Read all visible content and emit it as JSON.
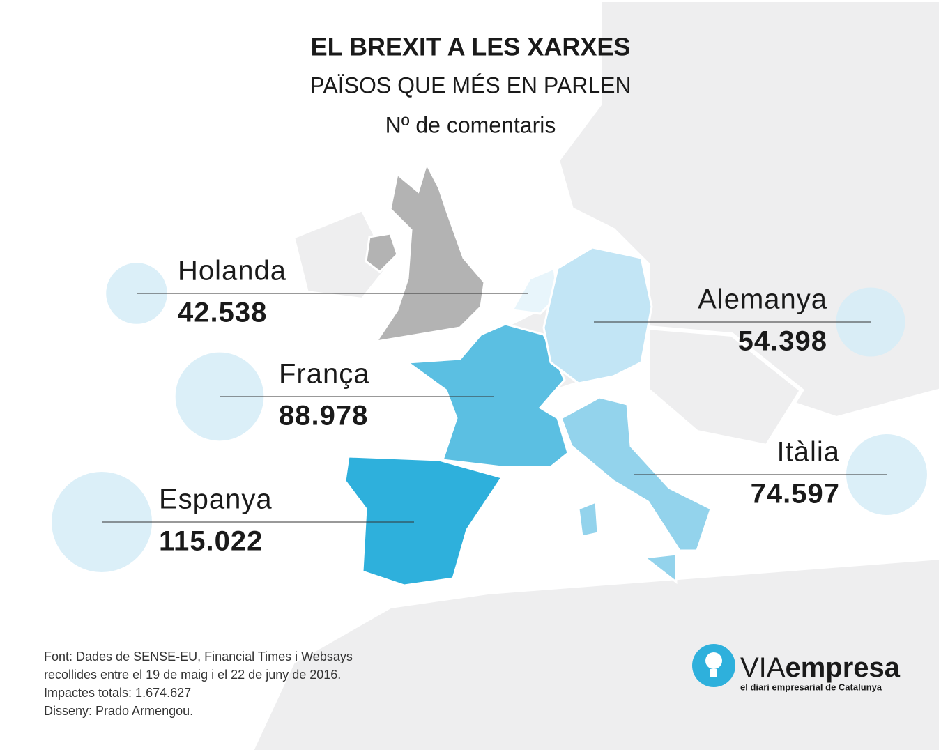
{
  "chart_data": {
    "type": "bubble",
    "title": "EL BREXIT A LES XARXES",
    "subtitle": "PAÏSOS QUE MÉS EN PARLEN",
    "value_label": "Nº de comentaris",
    "categories": [
      "Holanda",
      "França",
      "Espanya",
      "Alemanya",
      "Itàlia"
    ],
    "values": [
      42538,
      88978,
      115022,
      54398,
      74597
    ],
    "value_labels": [
      "42.538",
      "88.978",
      "115.022",
      "54.398",
      "74.597"
    ],
    "color": "#d5ecf7"
  },
  "notes": [
    "Font: Dades de SENSE-EU, Financial Times i Websays",
    "recollides entre el 19 de maig i el 22 de juny de 2016.",
    "Impactes totals: 1.674.627",
    "Disseny: Prado Armengou."
  ],
  "logo": {
    "prefix": "VIA",
    "name": "empresa",
    "tagline": "el diari empresarial de Catalunya"
  }
}
